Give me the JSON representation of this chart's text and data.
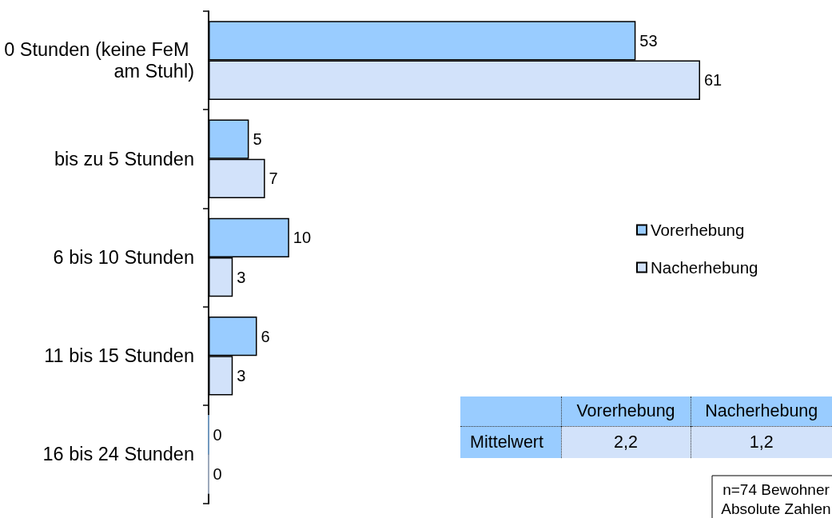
{
  "chart_data": [
    {
      "type": "bar",
      "orientation": "horizontal",
      "categories": [
        "0 Stunden (keine FeM am Stuhl)",
        "bis zu 5 Stunden",
        "6 bis 10 Stunden",
        "11 bis 15 Stunden",
        "16 bis 24 Stunden"
      ],
      "series": [
        {
          "name": "Vorerhebung",
          "color": "#99ccff",
          "values": [
            53,
            5,
            10,
            6,
            0
          ]
        },
        {
          "name": "Nacherhebung",
          "color": "#d2e2fa",
          "values": [
            61,
            7,
            3,
            3,
            0
          ]
        }
      ],
      "data_labels": true,
      "legend": "right",
      "tick_labels": "y",
      "annotations": [
        "n=74 Bewohner",
        "Absolute Zahlen"
      ]
    },
    {
      "type": "other",
      "categories": [
        "Vorerhebung",
        "Nacherhebung"
      ],
      "series": [
        {
          "name": "Mittelwert",
          "values": [
            2.2,
            1.2
          ],
          "value_labels": [
            "2,2",
            "1,2"
          ]
        }
      ]
    }
  ]
}
